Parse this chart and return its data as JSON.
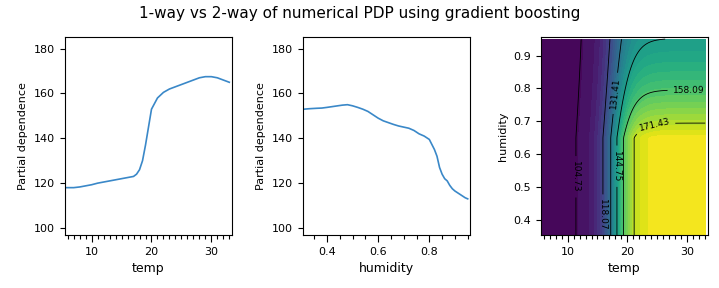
{
  "title": "1-way vs 2-way of numerical PDP using gradient boosting",
  "title_fontsize": 11,
  "plot1": {
    "xlabel": "temp",
    "ylabel": "Partial dependence",
    "xlim": [
      5.5,
      33.5
    ],
    "ylim": [
      97,
      185
    ],
    "yticks": [
      100,
      120,
      140,
      160,
      180
    ],
    "line_color": "#3a88c8"
  },
  "plot2": {
    "xlabel": "humidity",
    "ylabel": "Partial dependence",
    "xlim": [
      0.305,
      0.96
    ],
    "ylim": [
      97,
      185
    ],
    "yticks": [
      100,
      120,
      140,
      160,
      180
    ],
    "line_color": "#3a88c8"
  },
  "plot3": {
    "xlabel": "temp",
    "ylabel": "humidity",
    "xlim": [
      5.5,
      33.5
    ],
    "ylim": [
      0.355,
      0.955
    ],
    "yticks": [
      0.4,
      0.5,
      0.6,
      0.7,
      0.8,
      0.9
    ],
    "contour_levels": [
      104.73,
      118.07,
      131.41,
      144.75,
      158.09,
      171.43
    ],
    "colormap": "viridis"
  },
  "background_color": "#ffffff"
}
